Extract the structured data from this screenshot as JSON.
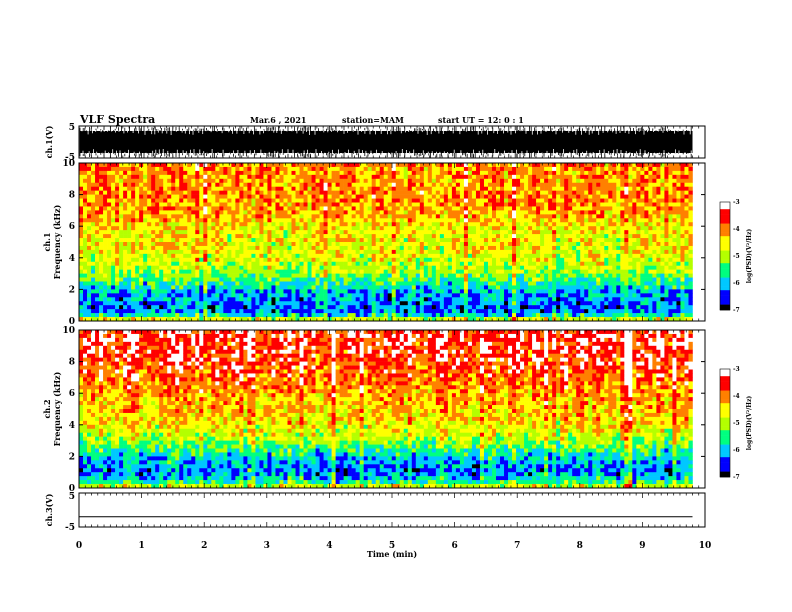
{
  "header": {
    "title": "VLF Spectra",
    "date": "Mar.6 , 2021",
    "station": "station=MAM",
    "start": "start UT = 12: 0 : 1"
  },
  "chart_data": [
    {
      "type": "line",
      "panel": "ch1-waveform",
      "ylabel": "ch.1(V)",
      "ylim": [
        -5,
        5
      ],
      "yticks": [
        "5",
        "-5"
      ],
      "xlim": [
        0,
        10
      ],
      "color": "#000000",
      "description_values": {
        "dense_impulsive_signal": true
      }
    },
    {
      "type": "heatmap",
      "panel": "ch1-spectrogram",
      "ylabel_top": "ch.1",
      "ylabel": "Frequency (kHz)",
      "ylim": [
        0,
        10
      ],
      "yticks": [
        "0",
        "2",
        "4",
        "6",
        "8",
        "10"
      ],
      "xlim": [
        0,
        9.8
      ],
      "frequency_profile_kHz": [
        0,
        0.5,
        1,
        1.5,
        2,
        2.5,
        3,
        3.5,
        4,
        5,
        6,
        7,
        8,
        9,
        10
      ],
      "log_psd_profile": [
        -4.3,
        -6.2,
        -6.3,
        -6.1,
        -5.9,
        -5.5,
        -5.1,
        -4.9,
        -4.7,
        -4.6,
        -4.5,
        -4.1,
        -4.0,
        -4.1,
        -4.0
      ],
      "colorbar": {
        "label": "log(PSD)(V²/Hz)",
        "range": [
          -7,
          -3
        ],
        "ticks": [
          "-3",
          "-4",
          "-5",
          "-6",
          "-7"
        ],
        "colors": [
          "#000000",
          "#0000ff",
          "#00c8ff",
          "#00ff80",
          "#b4ff00",
          "#ffff00",
          "#ff8000",
          "#ff0000",
          "#ffffff"
        ]
      }
    },
    {
      "type": "heatmap",
      "panel": "ch2-spectrogram",
      "ylabel_top": "ch.2",
      "ylabel": "Frequency (kHz)",
      "ylim": [
        0,
        10
      ],
      "yticks": [
        "0",
        "2",
        "4",
        "6",
        "8",
        "10"
      ],
      "xlim": [
        0,
        9.8
      ],
      "frequency_profile_kHz": [
        0,
        0.5,
        1,
        1.5,
        2,
        2.5,
        3,
        3.5,
        4,
        5,
        6,
        7,
        8,
        9,
        10
      ],
      "log_psd_profile": [
        -4.5,
        -5.8,
        -6.2,
        -6.1,
        -5.8,
        -5.4,
        -5.0,
        -4.7,
        -4.5,
        -4.3,
        -4.1,
        -3.8,
        -3.6,
        -3.5,
        -3.4
      ],
      "colorbar": {
        "label": "log(PSD)(V²/Hz)",
        "range": [
          -7,
          -3
        ],
        "ticks": [
          "-3",
          "-4",
          "-5",
          "-6",
          "-7"
        ],
        "colors": [
          "#000000",
          "#0000ff",
          "#00c8ff",
          "#00ff80",
          "#b4ff00",
          "#ffff00",
          "#ff8000",
          "#ff0000",
          "#ffffff"
        ]
      }
    },
    {
      "type": "line",
      "panel": "ch3-waveform",
      "ylabel": "ch.3(V)",
      "ylim": [
        -5,
        5
      ],
      "yticks": [
        "5",
        "-5"
      ],
      "xlim": [
        0,
        10
      ],
      "values_constant": -2,
      "color": "#000000"
    }
  ],
  "x_axis": {
    "label": "Time (min)",
    "ticks": [
      "0",
      "1",
      "2",
      "3",
      "4",
      "5",
      "6",
      "7",
      "8",
      "9",
      "10"
    ],
    "range": [
      0,
      10
    ]
  }
}
